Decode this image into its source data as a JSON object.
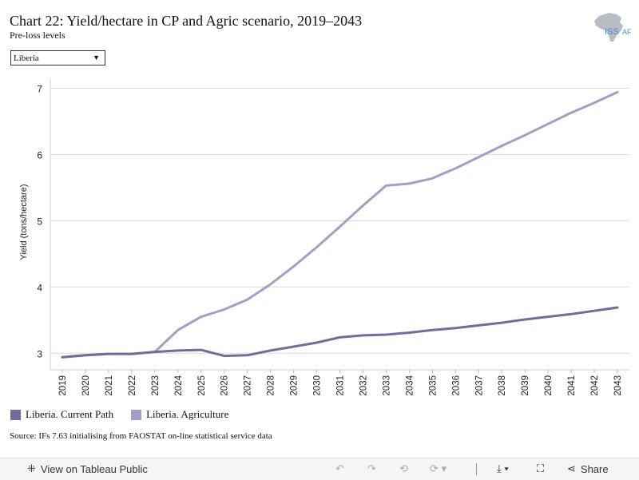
{
  "header": {
    "title": "Chart 22: Yield/hectare in CP and Agric scenario, 2019–2043",
    "subtitle": "Pre-loss levels"
  },
  "logo": {
    "text": "ISS",
    "text2": "AF",
    "icon": "africa-map-icon"
  },
  "filter": {
    "selected": "Liberia",
    "icon": "dropdown-arrow-icon"
  },
  "colors": {
    "current_path": "#736b9b",
    "agriculture": "#a39dcc",
    "grid": "#d9d9d9"
  },
  "chart_data": {
    "type": "line",
    "ylabel": "Yield (tons/hectare)",
    "xlabel": "",
    "ylim": [
      2.75,
      7.15
    ],
    "yticks": [
      3,
      4,
      5,
      6,
      7
    ],
    "x": [
      "2019",
      "2020",
      "2021",
      "2022",
      "2023",
      "2024",
      "2025",
      "2026",
      "2027",
      "2028",
      "2029",
      "2030",
      "2031",
      "2032",
      "2033",
      "2034",
      "2035",
      "2036",
      "2037",
      "2038",
      "2039",
      "2040",
      "2041",
      "2042",
      "2043"
    ],
    "series": [
      {
        "name": "Liberia. Current Path",
        "color": "#736b9b",
        "values": [
          2.94,
          2.97,
          2.99,
          2.99,
          3.02,
          3.04,
          3.05,
          2.96,
          2.97,
          3.04,
          3.1,
          3.16,
          3.24,
          3.27,
          3.28,
          3.31,
          3.35,
          3.38,
          3.42,
          3.46,
          3.51,
          3.55,
          3.59,
          3.64,
          3.69
        ]
      },
      {
        "name": "Liberia. Agriculture",
        "color": "#a39dcc",
        "values": [
          2.94,
          2.97,
          2.99,
          2.99,
          3.02,
          3.35,
          3.55,
          3.66,
          3.81,
          4.04,
          4.31,
          4.6,
          4.91,
          5.23,
          5.53,
          5.56,
          5.64,
          5.79,
          5.96,
          6.13,
          6.29,
          6.46,
          6.63,
          6.78,
          6.94
        ]
      }
    ],
    "grid": true,
    "legend": "bottom-left"
  },
  "source": "Source: IFs 7.63 initialising from FAOSTAT on-line statistical service data",
  "toolbar": {
    "view_label": "View on Tableau Public",
    "share_label": "Share",
    "icons": [
      "tableau-icon",
      "undo-icon",
      "redo-icon",
      "revert-icon",
      "refresh-icon",
      "download-icon",
      "fullscreen-icon",
      "share-icon"
    ]
  }
}
